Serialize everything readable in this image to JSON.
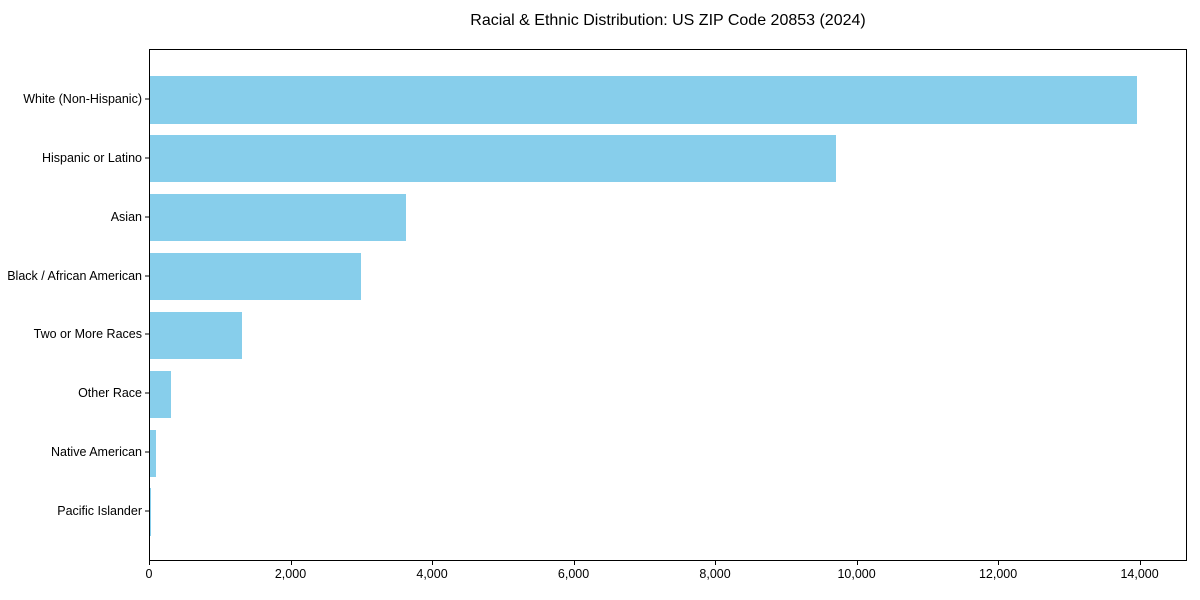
{
  "page": {
    "background_color": "#ffffff",
    "text_color": "#000000"
  },
  "chart_data": {
    "type": "bar",
    "orientation": "horizontal",
    "title": "Racial & Ethnic Distribution: US ZIP Code 20853 (2024)",
    "categories": [
      "White (Non-Hispanic)",
      "Hispanic or Latino",
      "Asian",
      "Black / African American",
      "Two or More Races",
      "Other Race",
      "Native American",
      "Pacific Islander"
    ],
    "values": [
      13950,
      9690,
      3620,
      2980,
      1300,
      300,
      80,
      10
    ],
    "xlabel": "",
    "ylabel": "",
    "xlim": [
      0,
      14670
    ],
    "x_ticks": [
      0,
      2000,
      4000,
      6000,
      8000,
      10000,
      12000,
      14000
    ],
    "x_tick_labels": [
      "0",
      "2,000",
      "4,000",
      "6,000",
      "8,000",
      "10,000",
      "12,000",
      "14,000"
    ],
    "bar_color": "#87CEEB",
    "axis_color": "#000000",
    "grid": false,
    "legend": null
  }
}
